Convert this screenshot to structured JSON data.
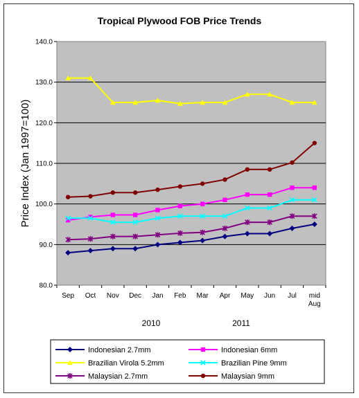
{
  "chart_data": {
    "type": "line",
    "title": "Tropical Plywood FOB Price Trends",
    "ylabel": "Price Index (Jan 1997=100)",
    "ylim": [
      80,
      140
    ],
    "yticks": [
      "80.0",
      "90.0",
      "100.0",
      "110.0",
      "120.0",
      "130.0",
      "140.0"
    ],
    "categories": [
      "Sep",
      "Oct",
      "Nov",
      "Dec",
      "Jan",
      "Feb",
      "Mar",
      "Apr",
      "May",
      "Jun",
      "Jul",
      "mid Aug"
    ],
    "category_lines": [
      [
        "Sep"
      ],
      [
        "Oct"
      ],
      [
        "Nov"
      ],
      [
        "Dec"
      ],
      [
        "Jan"
      ],
      [
        "Feb"
      ],
      [
        "Mar"
      ],
      [
        "Apr"
      ],
      [
        "May"
      ],
      [
        "Jun"
      ],
      [
        "Jul"
      ],
      [
        "mid",
        "Aug"
      ]
    ],
    "year_labels": [
      "2010",
      "2011"
    ],
    "grid": "horizontal",
    "legend_position": "bottom",
    "background": "#c0c0c0",
    "series": [
      {
        "name": "Indonesian 2.7mm",
        "color": "#000080",
        "marker": "diamond",
        "values": [
          88.0,
          88.5,
          89.0,
          89.0,
          90.0,
          90.5,
          91.0,
          92.0,
          92.7,
          92.7,
          94.0,
          95.0
        ]
      },
      {
        "name": "Indonesian 6mm",
        "color": "#ff00ff",
        "marker": "square",
        "values": [
          96.0,
          96.8,
          97.3,
          97.3,
          98.5,
          99.5,
          100.0,
          101.0,
          102.3,
          102.3,
          104.0,
          104.0
        ]
      },
      {
        "name": "Brazilian Virola 5.2mm",
        "color": "#ffff00",
        "marker": "triangle",
        "values": [
          131.0,
          131.0,
          125.0,
          125.0,
          125.5,
          124.7,
          125.0,
          125.0,
          127.0,
          127.0,
          125.0,
          125.0
        ]
      },
      {
        "name": "Brazilian Pine 9mm",
        "color": "#00ffff",
        "marker": "x",
        "values": [
          96.5,
          96.5,
          95.5,
          95.5,
          96.5,
          97.0,
          97.0,
          97.0,
          99.0,
          99.0,
          101.0,
          101.0
        ]
      },
      {
        "name": "Malaysian 2.7mm",
        "color": "#800080",
        "marker": "star",
        "values": [
          91.2,
          91.4,
          92.0,
          92.0,
          92.4,
          92.8,
          93.0,
          94.0,
          95.5,
          95.5,
          97.0,
          97.0
        ]
      },
      {
        "name": "Malaysian 9mm",
        "color": "#800000",
        "marker": "circle",
        "values": [
          101.7,
          101.9,
          102.8,
          102.8,
          103.5,
          104.3,
          105.0,
          106.0,
          108.5,
          108.5,
          110.2,
          115.0
        ]
      }
    ]
  }
}
